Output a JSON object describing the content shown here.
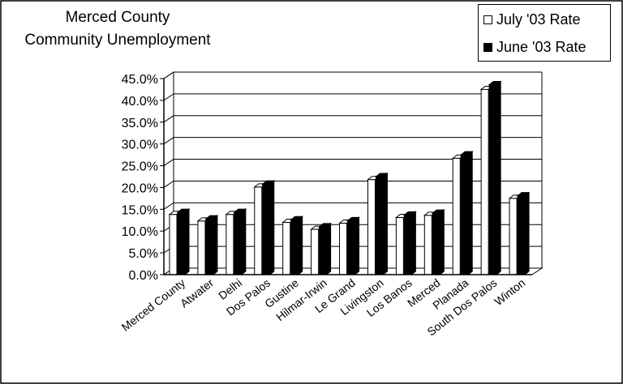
{
  "chart_data": {
    "type": "bar",
    "title": "Merced County Community Unemployment",
    "title_lines": [
      "Merced County",
      "Community Unemployment"
    ],
    "categories": [
      "Merced County",
      "Atwater",
      "Delhi",
      "Dos Palos",
      "Gustine",
      "Hilmar-Irwin",
      "Le Grand",
      "Livingston",
      "Los Banos",
      "Merced",
      "Planada",
      "South Dos Palos",
      "Winton"
    ],
    "series": [
      {
        "name": "July '03 Rate",
        "color": "#ffffff",
        "values": [
          13.8,
          12.3,
          13.8,
          20.1,
          12.0,
          10.4,
          11.8,
          21.8,
          13.1,
          13.6,
          26.7,
          42.5,
          17.5
        ]
      },
      {
        "name": "June '03 Rate",
        "color": "#000000",
        "values": [
          14.3,
          12.8,
          14.3,
          20.8,
          12.6,
          11.0,
          12.4,
          22.5,
          13.7,
          14.1,
          27.5,
          43.6,
          18.1
        ]
      }
    ],
    "yticks": [
      "0.0%",
      "5.0%",
      "10.0%",
      "15.0%",
      "20.0%",
      "25.0%",
      "30.0%",
      "35.0%",
      "40.0%",
      "45.0%"
    ],
    "ylim": [
      0,
      45
    ],
    "xlabel": "",
    "ylabel": "",
    "grid": true,
    "style": "3d-clustered-column",
    "legend_position": "top-right"
  }
}
